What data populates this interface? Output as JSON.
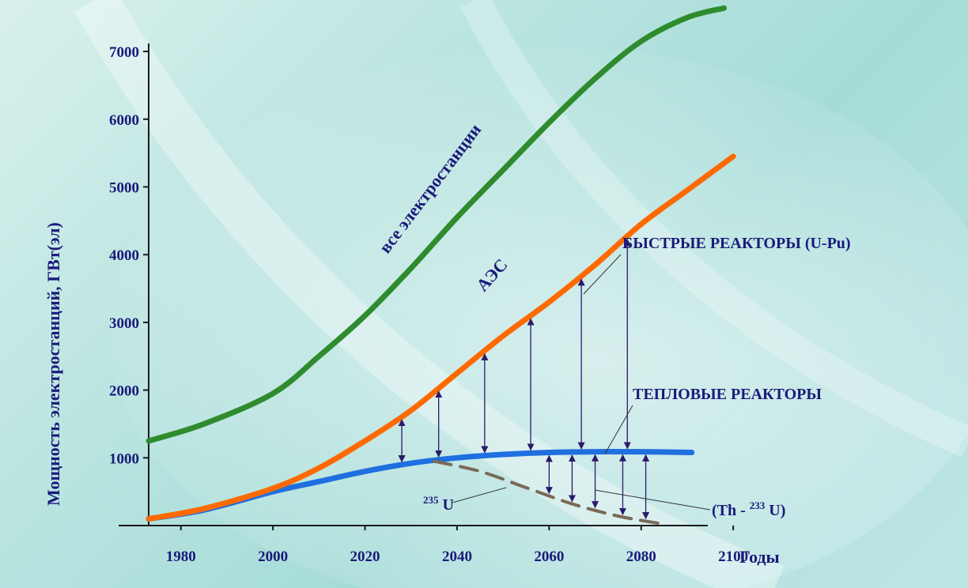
{
  "chart_data": {
    "type": "line",
    "xlabel": "Годы",
    "ylabel": "Мощность электростанций, ГВт(эл)",
    "xlim": [
      1973,
      2100
    ],
    "ylim": [
      0,
      7000
    ],
    "x_ticks": [
      1980,
      2000,
      2020,
      2040,
      2060,
      2080,
      2100
    ],
    "y_ticks": [
      1000,
      2000,
      3000,
      4000,
      5000,
      6000,
      7000
    ],
    "series": [
      {
        "name": "все электростанции",
        "color": "#2e8b2e",
        "x": [
          1973,
          1985,
          2000,
          2010,
          2020,
          2030,
          2040,
          2050,
          2060,
          2070,
          2080,
          2090,
          2098
        ],
        "y": [
          1250,
          1500,
          1950,
          2500,
          3100,
          3800,
          4550,
          5250,
          5950,
          6600,
          7150,
          7500,
          7640
        ]
      },
      {
        "name": "АЭС",
        "color": "#ff6a00",
        "x": [
          1973,
          1985,
          2000,
          2010,
          2020,
          2030,
          2040,
          2050,
          2060,
          2070,
          2080,
          2090,
          2100
        ],
        "y": [
          100,
          250,
          550,
          850,
          1250,
          1700,
          2250,
          2800,
          3300,
          3850,
          4450,
          4950,
          5450
        ]
      },
      {
        "name": "ТЕПЛОВЫЕ РЕАКТОРЫ",
        "color": "#1f6fe0",
        "x": [
          1973,
          1985,
          2000,
          2010,
          2020,
          2030,
          2040,
          2050,
          2060,
          2070,
          2080,
          2091
        ],
        "y": [
          100,
          230,
          500,
          650,
          800,
          920,
          1000,
          1050,
          1080,
          1090,
          1090,
          1080
        ]
      },
      {
        "name": "235U",
        "color": "#7a6a55",
        "style": "dashed",
        "x": [
          2035,
          2045,
          2055,
          2065,
          2075,
          2085
        ],
        "y": [
          950,
          800,
          560,
          320,
          140,
          20
        ]
      }
    ],
    "arrows_x": [
      2028,
      2036,
      2046,
      2056,
      2067,
      2077
    ],
    "thermal_arrows_x": [
      2060,
      2065,
      2070,
      2076,
      2081
    ],
    "annotations": {
      "fast": "БЫСТРЫЕ РЕАКТОРЫ (U-Pu)",
      "thermal": "ТЕПЛОВЫЕ РЕАКТОРЫ",
      "u235_mass": "235",
      "u235_sym": "U",
      "th_open": "(Th -",
      "th_mass": "233",
      "th_close": "U)"
    },
    "colors": {
      "axis": "#1a1a1a",
      "text": "#1a1a7a",
      "arrow": "#2a1a6a"
    }
  }
}
